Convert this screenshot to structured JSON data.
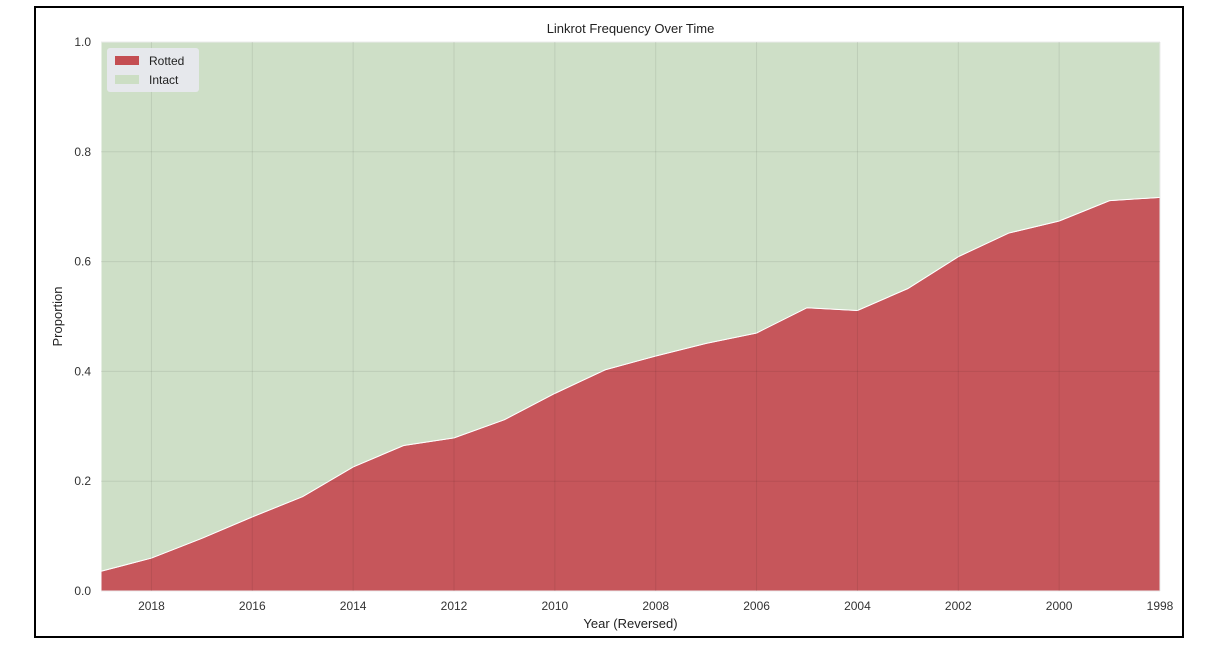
{
  "chart_data": {
    "type": "area",
    "stacked": true,
    "title": "Linkrot Frequency Over Time",
    "xlabel": "Year (Reversed)",
    "ylabel": "Proportion",
    "x_reversed": true,
    "xlim": [
      2019,
      1998
    ],
    "ylim": [
      0,
      1.0
    ],
    "grid": true,
    "legend_position": "top-left",
    "x_tick_labels": [
      "2018",
      "2016",
      "2014",
      "2012",
      "2010",
      "2008",
      "2006",
      "2004",
      "2002",
      "2000",
      "1998"
    ],
    "y_tick_labels": [
      "0.0",
      "0.2",
      "0.4",
      "0.6",
      "0.8",
      "1.0"
    ],
    "x": [
      2019,
      2018,
      2017,
      2016,
      2015,
      2014,
      2013,
      2012,
      2011,
      2010,
      2009,
      2008,
      2007,
      2006,
      2005,
      2004,
      2003,
      2002,
      2001,
      2000,
      1999,
      1998
    ],
    "series": [
      {
        "name": "Rotted",
        "color": "#c44e52",
        "values": [
          0.036,
          0.06,
          0.096,
          0.135,
          0.172,
          0.226,
          0.265,
          0.279,
          0.312,
          0.36,
          0.403,
          0.428,
          0.451,
          0.47,
          0.516,
          0.511,
          0.551,
          0.609,
          0.652,
          0.674,
          0.711,
          0.717
        ]
      },
      {
        "name": "Intact",
        "color": "#ccdec4",
        "values": [
          0.964,
          0.94,
          0.904,
          0.865,
          0.828,
          0.774,
          0.735,
          0.721,
          0.688,
          0.64,
          0.597,
          0.572,
          0.549,
          0.53,
          0.484,
          0.489,
          0.449,
          0.391,
          0.348,
          0.326,
          0.289,
          0.283
        ]
      }
    ]
  }
}
